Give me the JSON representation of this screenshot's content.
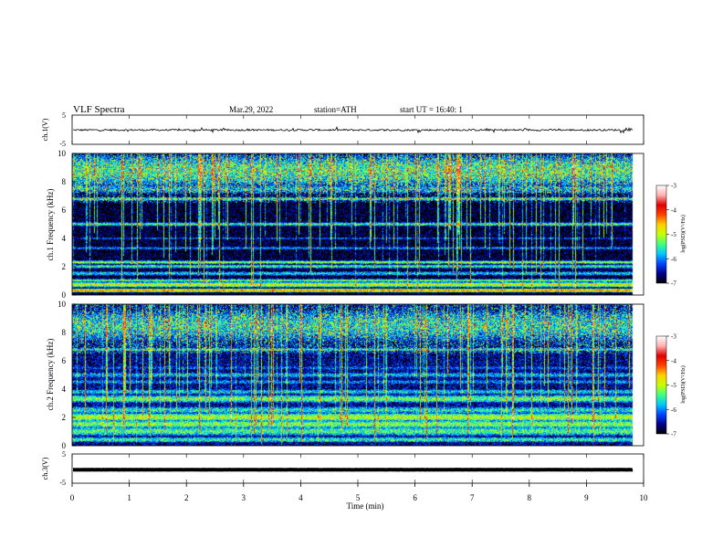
{
  "header": {
    "title": "VLF Spectra",
    "date": "Mar.29, 2022",
    "station": "station=ATH",
    "start": "start UT =  16:40: 1"
  },
  "chart_data": {
    "type": "heatmap",
    "xlabel": "Time (min)",
    "xlim": [
      0,
      10
    ],
    "x_ticks": [
      "0",
      "1",
      "2",
      "3",
      "4",
      "5",
      "6",
      "7",
      "8",
      "9",
      "10"
    ],
    "panels": [
      {
        "name": "ch.1(V)",
        "type": "line",
        "ylabel": "ch.1(V)",
        "ylim": [
          -5,
          5
        ],
        "y_ticks": [
          "5",
          "-5"
        ],
        "baseline": -0.1,
        "noise_amplitude": 0.3
      },
      {
        "name": "ch.1 Frequency (kHz)",
        "type": "heatmap",
        "ylabel": "ch.1 Frequency (kHz)",
        "ylim": [
          0,
          10
        ],
        "y_ticks": [
          "0",
          "2",
          "4",
          "6",
          "8",
          "10"
        ],
        "background_level": -6.9,
        "bands": [
          {
            "f": 0.3,
            "level": -4.5,
            "width": 0.08
          },
          {
            "f": 0.7,
            "level": -4.9,
            "width": 0.12
          },
          {
            "f": 1.0,
            "level": -5.3,
            "width": 0.08
          },
          {
            "f": 1.5,
            "level": -5.7,
            "width": 0.12
          },
          {
            "f": 2.0,
            "level": -5.5,
            "width": 0.1
          },
          {
            "f": 2.3,
            "level": -5.2,
            "width": 0.08
          },
          {
            "f": 3.3,
            "level": -6.0,
            "width": 0.1
          },
          {
            "f": 4.0,
            "level": -6.2,
            "width": 0.08
          },
          {
            "f": 5.0,
            "level": -5.5,
            "width": 0.1
          },
          {
            "f": 6.8,
            "level": -5.6,
            "width": 0.1
          },
          {
            "f": 7.5,
            "level": -6.0,
            "width": 0.3
          },
          {
            "f": 8.8,
            "level": -5.6,
            "width": 0.9
          }
        ]
      },
      {
        "name": "ch.2 Frequency (kHz)",
        "type": "heatmap",
        "ylabel": "ch.2 Frequency (kHz)",
        "ylim": [
          0,
          10
        ],
        "y_ticks": [
          "0",
          "2",
          "4",
          "6",
          "8",
          "10"
        ],
        "background_level": -6.6,
        "bands": [
          {
            "f": 0.4,
            "level": -5.5,
            "width": 0.15
          },
          {
            "f": 1.0,
            "level": -5.4,
            "width": 0.25
          },
          {
            "f": 1.5,
            "level": -5.2,
            "width": 0.2
          },
          {
            "f": 2.0,
            "level": -5.0,
            "width": 0.2
          },
          {
            "f": 2.5,
            "level": -5.6,
            "width": 0.2
          },
          {
            "f": 3.3,
            "level": -5.3,
            "width": 0.2
          },
          {
            "f": 3.8,
            "level": -5.7,
            "width": 0.15
          },
          {
            "f": 4.5,
            "level": -6.0,
            "width": 0.15
          },
          {
            "f": 5.0,
            "level": -5.8,
            "width": 0.15
          },
          {
            "f": 5.5,
            "level": -6.2,
            "width": 0.15
          },
          {
            "f": 6.8,
            "level": -5.7,
            "width": 0.1
          },
          {
            "f": 8.5,
            "level": -5.8,
            "width": 1.0
          }
        ]
      },
      {
        "name": "ch.3(V)",
        "type": "line",
        "ylabel": "ch.3(V)",
        "ylim": [
          -5,
          5
        ],
        "y_ticks": [
          "5",
          "-5"
        ],
        "baseline": -0.4,
        "noise_amplitude": 0.05
      }
    ],
    "colorbar": {
      "label": "log(PSD)(V²/Hz)",
      "range": [
        -7,
        -3
      ],
      "ticks": [
        "-3",
        "-4",
        "-5",
        "-6",
        "-7"
      ],
      "colors": [
        "#000000",
        "#00008c",
        "#0044ff",
        "#00c8ff",
        "#40ff80",
        "#c8ff00",
        "#ffd000",
        "#ff4000",
        "#e00000",
        "#ffb0b0",
        "#ffffff"
      ]
    }
  }
}
